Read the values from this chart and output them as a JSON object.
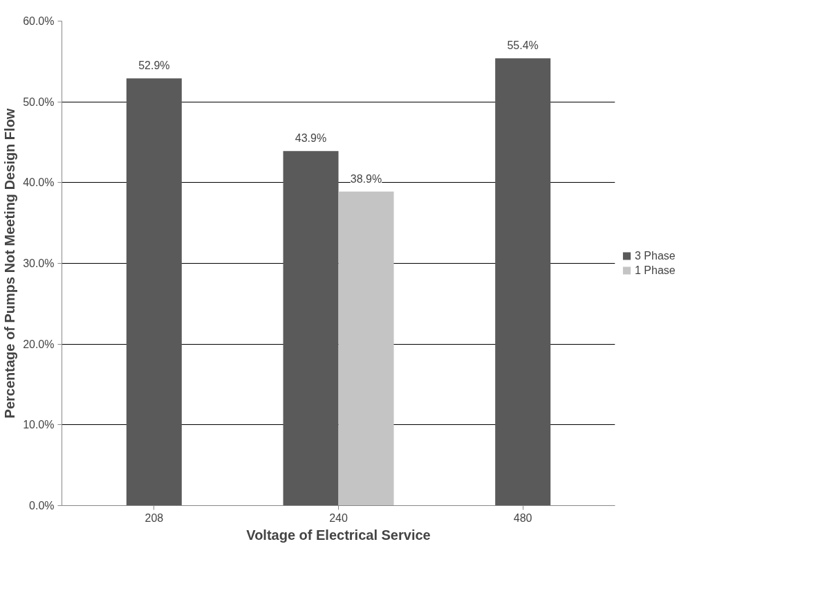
{
  "chart_data": {
    "type": "bar",
    "xlabel": "Voltage of Electrical Service",
    "ylabel": "Percentage of Pumps Not Meeting Design Flow",
    "categories": [
      "208",
      "240",
      "480"
    ],
    "series": [
      {
        "name": "3 Phase",
        "color": "#5a5a5a",
        "values": [
          52.9,
          43.9,
          55.4
        ],
        "value_labels": [
          "52.9%",
          "43.9%",
          "55.4%"
        ]
      },
      {
        "name": "1 Phase",
        "color": "#c4c4c4",
        "values": [
          null,
          38.9,
          null
        ],
        "value_labels": [
          null,
          "38.9%",
          null
        ]
      }
    ],
    "ylim": [
      0,
      60
    ],
    "yticks": [
      {
        "value": 0,
        "label": "0.0%"
      },
      {
        "value": 10,
        "label": "10.0%"
      },
      {
        "value": 20,
        "label": "20.0%"
      },
      {
        "value": 30,
        "label": "30.0%"
      },
      {
        "value": 40,
        "label": "40.0%"
      },
      {
        "value": 50,
        "label": "50.0%"
      },
      {
        "value": 60,
        "label": "60.0%"
      }
    ],
    "grid": "y",
    "legend": "right"
  }
}
